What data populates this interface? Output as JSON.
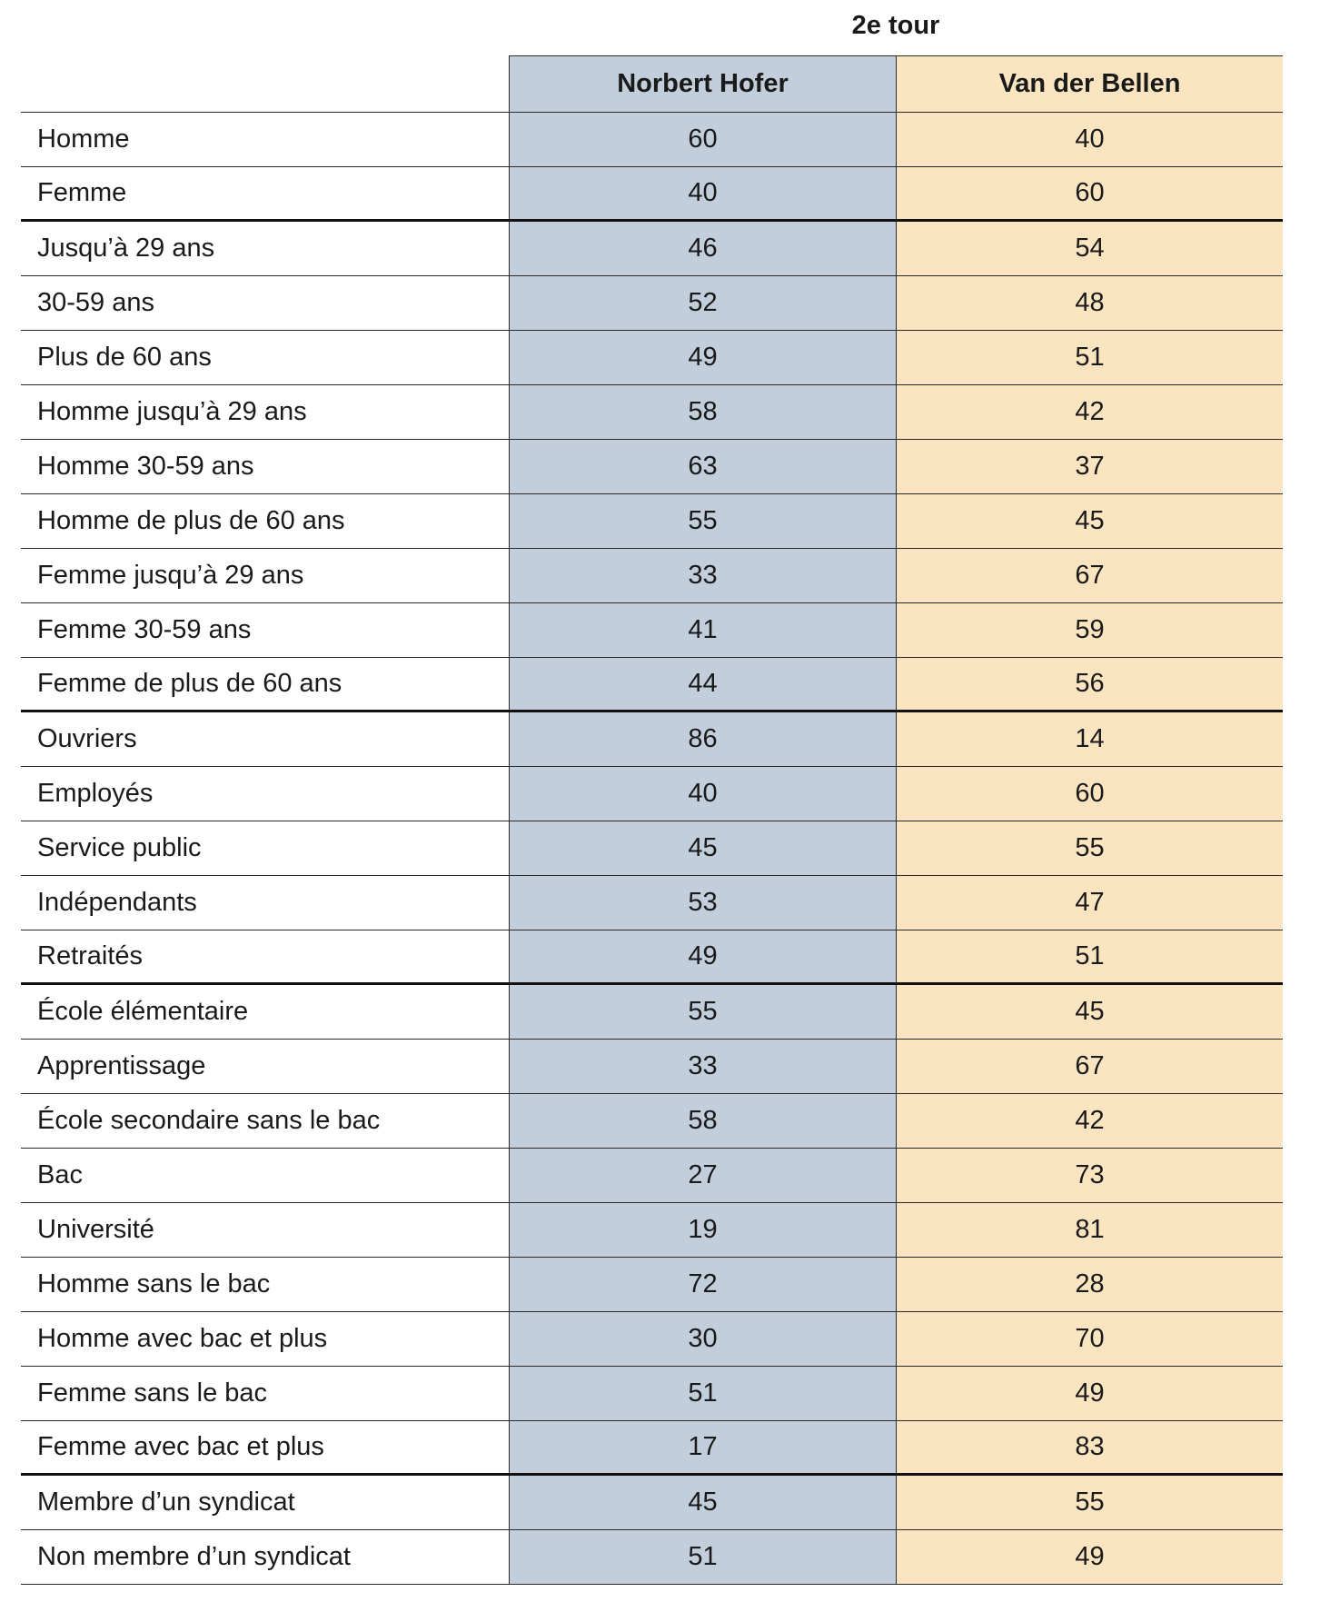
{
  "table": {
    "title": "2e tour",
    "headers": [
      "Norbert Hofer",
      "Van der Bellen"
    ],
    "groups": [
      [
        [
          "Homme",
          "60",
          "40"
        ],
        [
          "Femme",
          "40",
          "60"
        ]
      ],
      [
        [
          "Jusqu’à 29 ans",
          "46",
          "54"
        ],
        [
          "30-59 ans",
          "52",
          "48"
        ],
        [
          "Plus de 60 ans",
          "49",
          "51"
        ],
        [
          "Homme jusqu’à 29 ans",
          "58",
          "42"
        ],
        [
          "Homme 30-59 ans",
          "63",
          "37"
        ],
        [
          "Homme de plus de 60 ans",
          "55",
          "45"
        ],
        [
          "Femme jusqu’à 29 ans",
          "33",
          "67"
        ],
        [
          "Femme 30-59 ans",
          "41",
          "59"
        ],
        [
          "Femme de plus de 60 ans",
          "44",
          "56"
        ]
      ],
      [
        [
          "Ouvriers",
          "86",
          "14"
        ],
        [
          "Employés",
          "40",
          "60"
        ],
        [
          "Service public",
          "45",
          "55"
        ],
        [
          "Indépendants",
          "53",
          "47"
        ],
        [
          "Retraités",
          "49",
          "51"
        ]
      ],
      [
        [
          "École élémentaire",
          "55",
          "45"
        ],
        [
          "Apprentissage",
          "33",
          "67"
        ],
        [
          "École secondaire sans le bac",
          "58",
          "42"
        ],
        [
          "Bac",
          "27",
          "73"
        ],
        [
          "Université",
          "19",
          "81"
        ],
        [
          "Homme sans le bac",
          "72",
          "28"
        ],
        [
          "Homme avec bac et plus",
          "30",
          "70"
        ],
        [
          "Femme sans le bac",
          "51",
          "49"
        ],
        [
          "Femme avec bac et plus",
          "17",
          "83"
        ]
      ],
      [
        [
          "Membre d’un syndicat",
          "45",
          "55"
        ],
        [
          "Non membre d’un syndicat",
          "51",
          "49"
        ]
      ]
    ]
  }
}
